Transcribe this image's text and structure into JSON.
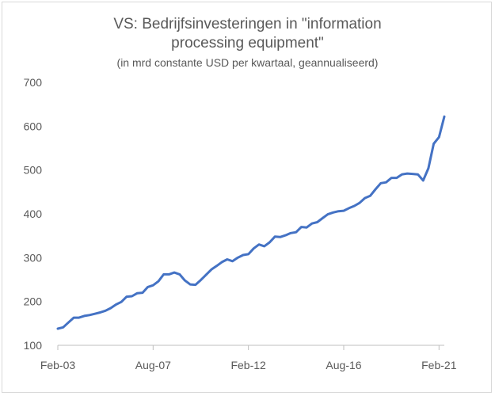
{
  "chart_data": {
    "type": "line",
    "title_line1": "VS: Bedrijfsinvesteringen in \"information",
    "title_line2": "processing equipment\"",
    "subtitle": "(in mrd constante USD per kwartaal, geannualiseerd)",
    "xlabel": "",
    "ylabel": "",
    "ylim": [
      100,
      700
    ],
    "yticks": [
      100,
      200,
      300,
      400,
      500,
      600,
      700
    ],
    "xtick_labels": [
      "Feb-03",
      "Aug-07",
      "Feb-12",
      "Aug-16",
      "Feb-21"
    ],
    "xtick_index": [
      0,
      18,
      36,
      54,
      72
    ],
    "grid": false,
    "line_color": "#4472c4",
    "series": [
      {
        "values": [
          138,
          141,
          152,
          163,
          163,
          167,
          169,
          172,
          175,
          179,
          185,
          193,
          199,
          211,
          212,
          219,
          220,
          233,
          237,
          246,
          262,
          262,
          266,
          262,
          248,
          239,
          238,
          249,
          261,
          273,
          281,
          290,
          296,
          292,
          300,
          306,
          308,
          321,
          330,
          326,
          335,
          348,
          347,
          351,
          356,
          358,
          370,
          369,
          378,
          381,
          390,
          399,
          403,
          406,
          407,
          413,
          418,
          425,
          436,
          441,
          456,
          470,
          472,
          482,
          482,
          490,
          492,
          491,
          490,
          476,
          504,
          560,
          575,
          622
        ]
      }
    ]
  }
}
